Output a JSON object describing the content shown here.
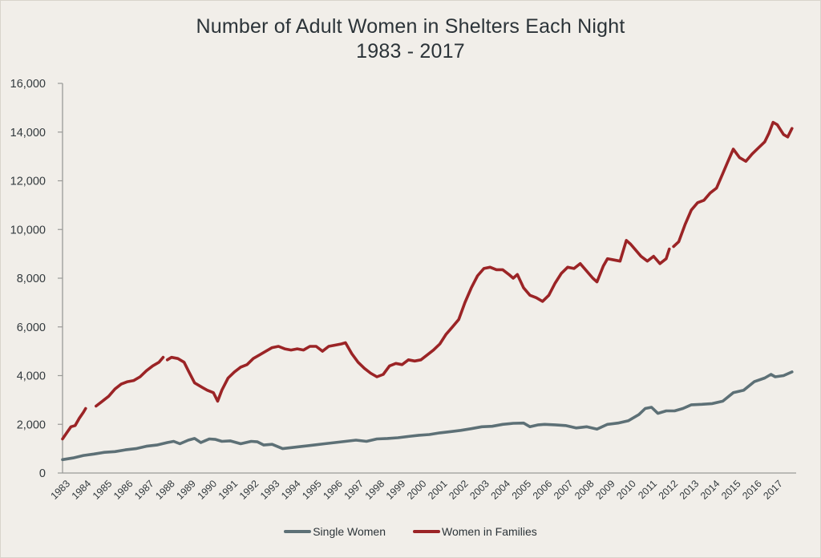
{
  "title": {
    "line1": "Number of Adult Women in Shelters Each Night",
    "line2": "1983 - 2017"
  },
  "legend": [
    {
      "label": "Single Women",
      "color": "#5d7076"
    },
    {
      "label": "Women in Families",
      "color": "#9b2426"
    }
  ],
  "chart_data": {
    "type": "line",
    "title": "Number of Adult Women in Shelters Each Night 1983 - 2017",
    "xlabel": "",
    "ylabel": "",
    "xlim": [
      1983,
      2018
    ],
    "ylim": [
      0,
      16000
    ],
    "yticks": [
      0,
      2000,
      4000,
      6000,
      8000,
      10000,
      12000,
      14000,
      16000
    ],
    "ytick_labels": [
      "0",
      "2,000",
      "4,000",
      "6,000",
      "8,000",
      "10,000",
      "12,000",
      "14,000",
      "16,000"
    ],
    "xtick_labels": [
      "1983",
      "1984",
      "1985",
      "1986",
      "1987",
      "1988",
      "1989",
      "1990",
      "1991",
      "1992",
      "1993",
      "1994",
      "1995",
      "1996",
      "1997",
      "1998",
      "1999",
      "2000",
      "2001",
      "2002",
      "2003",
      "2004",
      "2005",
      "2006",
      "2007",
      "2008",
      "2009",
      "2010",
      "2011",
      "2012",
      "2013",
      "2014",
      "2015",
      "2016",
      "2017"
    ],
    "grid": false,
    "legend_position": "bottom-center",
    "series": [
      {
        "name": "Single Women",
        "color": "#5d7076",
        "segments": [
          [
            [
              1983.0,
              550
            ],
            [
              1983.5,
              620
            ],
            [
              1984.0,
              720
            ],
            [
              1984.5,
              780
            ],
            [
              1985.0,
              850
            ],
            [
              1985.5,
              880
            ],
            [
              1986.0,
              950
            ],
            [
              1986.5,
              1000
            ],
            [
              1987.0,
              1100
            ],
            [
              1987.5,
              1150
            ],
            [
              1988.0,
              1250
            ],
            [
              1988.3,
              1300
            ],
            [
              1988.6,
              1200
            ],
            [
              1989.0,
              1350
            ],
            [
              1989.3,
              1420
            ],
            [
              1989.6,
              1250
            ],
            [
              1990.0,
              1400
            ],
            [
              1990.3,
              1380
            ],
            [
              1990.6,
              1300
            ],
            [
              1991.0,
              1320
            ],
            [
              1991.5,
              1200
            ],
            [
              1992.0,
              1300
            ],
            [
              1992.3,
              1280
            ],
            [
              1992.6,
              1150
            ],
            [
              1993.0,
              1180
            ],
            [
              1993.5,
              1000
            ],
            [
              1994.0,
              1050
            ],
            [
              1994.5,
              1100
            ],
            [
              1995.0,
              1150
            ],
            [
              1995.5,
              1200
            ],
            [
              1996.0,
              1250
            ],
            [
              1996.5,
              1300
            ],
            [
              1997.0,
              1350
            ],
            [
              1997.5,
              1300
            ],
            [
              1998.0,
              1400
            ],
            [
              1998.5,
              1420
            ],
            [
              1999.0,
              1450
            ],
            [
              1999.5,
              1500
            ],
            [
              2000.0,
              1550
            ],
            [
              2000.5,
              1580
            ],
            [
              2001.0,
              1650
            ],
            [
              2001.5,
              1700
            ],
            [
              2002.0,
              1750
            ],
            [
              2002.5,
              1820
            ],
            [
              2003.0,
              1900
            ],
            [
              2003.5,
              1920
            ],
            [
              2004.0,
              2000
            ],
            [
              2004.5,
              2040
            ],
            [
              2005.0,
              2050
            ],
            [
              2005.3,
              1900
            ],
            [
              2005.7,
              1980
            ],
            [
              2006.0,
              2000
            ],
            [
              2006.5,
              1980
            ],
            [
              2007.0,
              1950
            ],
            [
              2007.5,
              1850
            ],
            [
              2008.0,
              1900
            ],
            [
              2008.5,
              1800
            ],
            [
              2009.0,
              2000
            ],
            [
              2009.5,
              2050
            ],
            [
              2010.0,
              2150
            ],
            [
              2010.5,
              2400
            ],
            [
              2010.8,
              2650
            ],
            [
              2011.1,
              2700
            ],
            [
              2011.4,
              2450
            ],
            [
              2011.8,
              2550
            ],
            [
              2012.2,
              2550
            ],
            [
              2012.6,
              2650
            ],
            [
              2013.0,
              2800
            ],
            [
              2013.5,
              2820
            ],
            [
              2014.0,
              2850
            ],
            [
              2014.5,
              2950
            ],
            [
              2015.0,
              3300
            ],
            [
              2015.5,
              3400
            ],
            [
              2016.0,
              3750
            ],
            [
              2016.5,
              3900
            ],
            [
              2016.8,
              4050
            ],
            [
              2017.0,
              3950
            ],
            [
              2017.4,
              4000
            ],
            [
              2017.8,
              4150
            ]
          ]
        ]
      },
      {
        "name": "Women in Families",
        "color": "#9b2426",
        "segments": [
          [
            [
              1983.0,
              1400
            ],
            [
              1983.2,
              1650
            ],
            [
              1983.4,
              1900
            ],
            [
              1983.6,
              1950
            ],
            [
              1983.8,
              2250
            ],
            [
              1984.0,
              2500
            ],
            [
              1984.1,
              2650
            ]
          ],
          [
            [
              1984.6,
              2750
            ],
            [
              1984.9,
              2950
            ],
            [
              1985.2,
              3150
            ],
            [
              1985.5,
              3450
            ],
            [
              1985.8,
              3650
            ],
            [
              1986.1,
              3750
            ],
            [
              1986.4,
              3800
            ],
            [
              1986.7,
              3950
            ],
            [
              1987.0,
              4200
            ],
            [
              1987.3,
              4400
            ],
            [
              1987.6,
              4550
            ],
            [
              1987.8,
              4750
            ]
          ],
          [
            [
              1988.0,
              4650
            ],
            [
              1988.2,
              4750
            ],
            [
              1988.5,
              4700
            ],
            [
              1988.8,
              4550
            ],
            [
              1989.0,
              4200
            ],
            [
              1989.3,
              3700
            ],
            [
              1989.6,
              3550
            ],
            [
              1989.9,
              3400
            ],
            [
              1990.2,
              3300
            ],
            [
              1990.4,
              2950
            ],
            [
              1990.6,
              3400
            ],
            [
              1990.9,
              3900
            ],
            [
              1991.2,
              4150
            ],
            [
              1991.5,
              4350
            ],
            [
              1991.8,
              4450
            ],
            [
              1992.1,
              4700
            ],
            [
              1992.4,
              4850
            ],
            [
              1992.7,
              5000
            ],
            [
              1993.0,
              5150
            ],
            [
              1993.3,
              5200
            ],
            [
              1993.6,
              5100
            ],
            [
              1993.9,
              5050
            ],
            [
              1994.2,
              5100
            ],
            [
              1994.5,
              5050
            ],
            [
              1994.8,
              5200
            ],
            [
              1995.1,
              5200
            ],
            [
              1995.4,
              5000
            ],
            [
              1995.7,
              5200
            ],
            [
              1996.0,
              5250
            ],
            [
              1996.3,
              5300
            ],
            [
              1996.5,
              5350
            ],
            [
              1996.8,
              4900
            ],
            [
              1997.1,
              4550
            ],
            [
              1997.4,
              4300
            ],
            [
              1997.7,
              4100
            ],
            [
              1998.0,
              3950
            ],
            [
              1998.3,
              4050
            ],
            [
              1998.6,
              4400
            ],
            [
              1998.9,
              4500
            ],
            [
              1999.2,
              4450
            ],
            [
              1999.5,
              4650
            ],
            [
              1999.8,
              4600
            ],
            [
              2000.1,
              4650
            ],
            [
              2000.4,
              4850
            ],
            [
              2000.7,
              5050
            ],
            [
              2001.0,
              5300
            ],
            [
              2001.3,
              5700
            ],
            [
              2001.6,
              6000
            ],
            [
              2001.9,
              6300
            ],
            [
              2002.2,
              7000
            ],
            [
              2002.5,
              7600
            ],
            [
              2002.8,
              8100
            ],
            [
              2003.1,
              8400
            ],
            [
              2003.4,
              8450
            ],
            [
              2003.7,
              8350
            ],
            [
              2004.0,
              8350
            ],
            [
              2004.3,
              8150
            ],
            [
              2004.5,
              8000
            ],
            [
              2004.7,
              8150
            ],
            [
              2005.0,
              7600
            ],
            [
              2005.3,
              7300
            ],
            [
              2005.6,
              7200
            ],
            [
              2005.9,
              7050
            ],
            [
              2006.2,
              7300
            ],
            [
              2006.5,
              7800
            ],
            [
              2006.8,
              8200
            ],
            [
              2007.1,
              8450
            ],
            [
              2007.4,
              8400
            ],
            [
              2007.7,
              8600
            ],
            [
              2008.0,
              8300
            ],
            [
              2008.3,
              8000
            ],
            [
              2008.5,
              7850
            ],
            [
              2008.8,
              8500
            ],
            [
              2009.0,
              8800
            ],
            [
              2009.3,
              8750
            ],
            [
              2009.6,
              8700
            ],
            [
              2009.9,
              9550
            ],
            [
              2010.1,
              9400
            ],
            [
              2010.3,
              9200
            ],
            [
              2010.6,
              8900
            ],
            [
              2010.9,
              8700
            ],
            [
              2011.2,
              8900
            ],
            [
              2011.5,
              8600
            ],
            [
              2011.8,
              8800
            ],
            [
              2011.95,
              9200
            ]
          ],
          [
            [
              2012.15,
              9300
            ],
            [
              2012.4,
              9500
            ],
            [
              2012.7,
              10200
            ],
            [
              2013.0,
              10800
            ],
            [
              2013.3,
              11100
            ],
            [
              2013.6,
              11200
            ],
            [
              2013.9,
              11500
            ],
            [
              2014.2,
              11700
            ],
            [
              2014.5,
              12300
            ],
            [
              2014.7,
              12700
            ],
            [
              2015.0,
              13300
            ],
            [
              2015.3,
              12950
            ],
            [
              2015.6,
              12800
            ],
            [
              2015.9,
              13100
            ],
            [
              2016.2,
              13350
            ],
            [
              2016.5,
              13600
            ],
            [
              2016.7,
              13950
            ],
            [
              2016.9,
              14400
            ],
            [
              2017.1,
              14300
            ],
            [
              2017.4,
              13900
            ],
            [
              2017.6,
              13800
            ],
            [
              2017.8,
              14150
            ]
          ]
        ]
      }
    ]
  }
}
